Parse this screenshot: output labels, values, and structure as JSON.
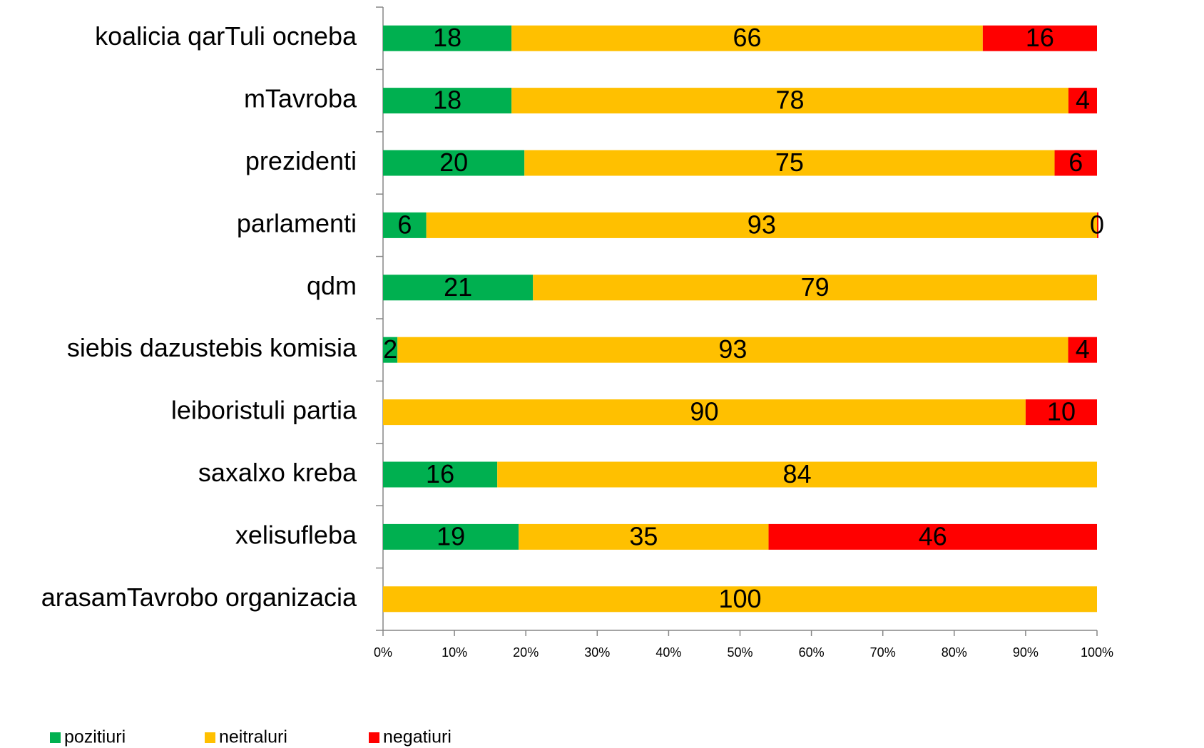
{
  "chart_data": {
    "type": "stacked_bar_horizontal_percent",
    "categories": [
      "koalicia qarTuli ocneba",
      "mTavroba",
      "prezidenti",
      "parlamenti",
      "qdm",
      "siebis dazustebis komisia",
      "leiboristuli partia",
      "saxalxo kreba",
      "xelisufleba",
      "arasamTavrobo organizacia"
    ],
    "series": [
      {
        "name": "pozitiuri",
        "color": "#00b050",
        "values": [
          18,
          18,
          20,
          6,
          21,
          2,
          null,
          16,
          19,
          null
        ]
      },
      {
        "name": "neitraluri",
        "color": "#ffc000",
        "values": [
          66,
          78,
          75,
          93,
          79,
          93,
          90,
          84,
          35,
          100
        ]
      },
      {
        "name": "negatiuri",
        "color": "#ff0000",
        "values": [
          16,
          4,
          6,
          0,
          null,
          4,
          10,
          null,
          46,
          null
        ]
      }
    ],
    "xlim": [
      0,
      100
    ],
    "xticks": [
      {
        "value": 0,
        "label": "0%"
      },
      {
        "value": 10,
        "label": "10%"
      },
      {
        "value": 20,
        "label": "20%"
      },
      {
        "value": 30,
        "label": "30%"
      },
      {
        "value": 40,
        "label": "40%"
      },
      {
        "value": 50,
        "label": "50%"
      },
      {
        "value": 60,
        "label": "60%"
      },
      {
        "value": 70,
        "label": "70%"
      },
      {
        "value": 80,
        "label": "80%"
      },
      {
        "value": 90,
        "label": "90%"
      },
      {
        "value": 100,
        "label": "100%"
      }
    ],
    "legend": "bottom-left"
  }
}
